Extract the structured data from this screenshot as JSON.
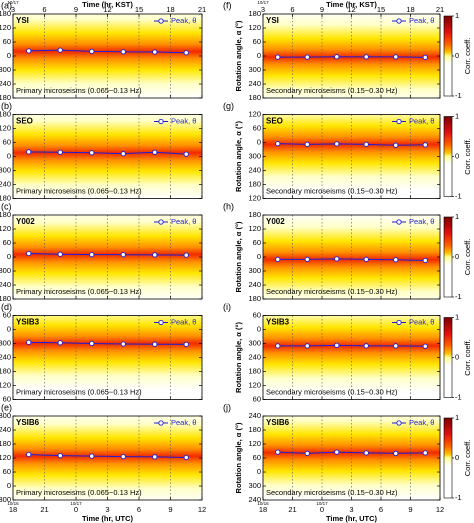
{
  "chart_data": [
    {
      "type": "line",
      "panel": "(a)",
      "station": "YSI",
      "band": "Primary microseisms (0.065−0.13 Hz)",
      "x": [
        19.5,
        22.5,
        25.5,
        28.5,
        31.5,
        34.5
      ],
      "xlim": [
        18,
        36
      ],
      "xticks": [
        18,
        21,
        24,
        27,
        30,
        33,
        36
      ],
      "x2label": "Time (hr, KST)",
      "x2date": "10/17",
      "x2lim": [
        27,
        45
      ],
      "x2ticks": [
        {
          "value": 27,
          "label": "3"
        },
        {
          "value": 30,
          "label": "6"
        },
        {
          "value": 33,
          "label": "9"
        },
        {
          "value": 36,
          "label": "12"
        },
        {
          "value": 39,
          "label": "15"
        },
        {
          "value": 42,
          "label": "18"
        },
        {
          "value": 45,
          "label": "21"
        }
      ],
      "ylim": [
        -180,
        180
      ],
      "yticks": [
        180,
        120,
        60,
        0,
        {
          "value": -60,
          "label": "300"
        },
        {
          "value": -120,
          "label": "240"
        },
        {
          "value": -180,
          "label": "180"
        }
      ],
      "series": [
        {
          "name": "Peak, θ",
          "color": "#1f1fd0",
          "values": [
            22,
            25,
            20,
            18,
            17,
            14
          ]
        }
      ]
    },
    {
      "type": "line",
      "panel": "(b)",
      "station": "SEO",
      "band": "Primary microseisms (0.065−0.13 Hz)",
      "x": [
        19.5,
        22.5,
        25.5,
        28.5,
        31.5,
        34.5
      ],
      "xlim": [
        18,
        36
      ],
      "xticks": [
        18,
        21,
        24,
        27,
        30,
        33,
        36
      ],
      "ylim": [
        -180,
        180
      ],
      "yticks": [
        180,
        120,
        60,
        0,
        {
          "value": -60,
          "label": "300"
        },
        {
          "value": -120,
          "label": "240"
        },
        {
          "value": -180,
          "label": "180"
        }
      ],
      "series": [
        {
          "name": "Peak, θ",
          "color": "#1f1fd0",
          "values": [
            20,
            18,
            16,
            12,
            18,
            10
          ]
        }
      ]
    },
    {
      "type": "line",
      "panel": "(c)",
      "station": "Y002",
      "band": "Primary microseisms (0.065−0.13 Hz)",
      "x": [
        19.5,
        22.5,
        25.5,
        28.5,
        31.5,
        34.5
      ],
      "xlim": [
        18,
        36
      ],
      "xticks": [
        18,
        21,
        24,
        27,
        30,
        33,
        36
      ],
      "ylim": [
        -180,
        180
      ],
      "yticks": [
        180,
        120,
        60,
        0,
        {
          "value": -60,
          "label": "300"
        },
        {
          "value": -120,
          "label": "240"
        },
        {
          "value": -180,
          "label": "180"
        }
      ],
      "series": [
        {
          "name": "Peak, θ",
          "color": "#1f1fd0",
          "values": [
            15,
            12,
            10,
            10,
            9,
            8
          ]
        }
      ]
    },
    {
      "type": "line",
      "panel": "(d)",
      "station": "YSIB3",
      "band": "Primary microseisms (0.065−0.13 Hz)",
      "x": [
        19.5,
        22.5,
        25.5,
        28.5,
        31.5,
        34.5
      ],
      "xlim": [
        18,
        36
      ],
      "xticks": [
        18,
        21,
        24,
        27,
        30,
        33,
        36
      ],
      "ylim": [
        -300,
        60
      ],
      "yticks": [
        60,
        0,
        {
          "value": -60,
          "label": "300"
        },
        {
          "value": -120,
          "label": "240"
        },
        {
          "value": -180,
          "label": "180"
        },
        {
          "value": -240,
          "label": "120"
        },
        {
          "value": -300,
          "label": "60"
        }
      ],
      "series": [
        {
          "name": "Peak, θ",
          "color": "#1f1fd0",
          "values": [
            -55,
            -57,
            -60,
            -62,
            -63,
            -64
          ]
        }
      ]
    },
    {
      "type": "line",
      "panel": "(e)",
      "station": "YSIB6",
      "band": "Primary microseisms (0.065−0.13 Hz)",
      "x": [
        19.5,
        22.5,
        25.5,
        28.5,
        31.5,
        34.5
      ],
      "xlim": [
        18,
        36
      ],
      "xticks": [
        {
          "value": 18,
          "label": "18"
        },
        {
          "value": 21,
          "label": "21"
        },
        {
          "value": 24,
          "label": "0"
        },
        {
          "value": 27,
          "label": "3"
        },
        {
          "value": 30,
          "label": "6"
        },
        {
          "value": 33,
          "label": "9"
        },
        {
          "value": 36,
          "label": "12"
        }
      ],
      "xlabel": "Time (hr, UTC)",
      "xdates": [
        {
          "value": 18,
          "label": "10/16"
        },
        {
          "value": 24,
          "label": "10/17"
        }
      ],
      "ylim": [
        -60,
        300
      ],
      "yticks": [
        300,
        240,
        180,
        120,
        60,
        0,
        {
          "value": -60,
          "label": "300"
        }
      ],
      "series": [
        {
          "name": "Peak, θ",
          "color": "#1f1fd0",
          "values": [
            135,
            130,
            128,
            126,
            125,
            122
          ]
        }
      ]
    },
    {
      "type": "line",
      "panel": "(f)",
      "station": "YSI",
      "band": "Secondary microseisms (0.15−0.30 Hz)",
      "ylabel": "Rotation angle, α (°)",
      "x": [
        19.5,
        22.5,
        25.5,
        28.5,
        31.5,
        34.5
      ],
      "xlim": [
        18,
        36
      ],
      "xticks": [
        18,
        21,
        24,
        27,
        30,
        33,
        36
      ],
      "x2label": "Time (hr, KST)",
      "x2date": "10/17",
      "x2lim": [
        27,
        45
      ],
      "x2ticks": [
        {
          "value": 27,
          "label": "3"
        },
        {
          "value": 30,
          "label": "6"
        },
        {
          "value": 33,
          "label": "9"
        },
        {
          "value": 36,
          "label": "12"
        },
        {
          "value": 39,
          "label": "15"
        },
        {
          "value": 42,
          "label": "18"
        },
        {
          "value": 45,
          "label": "21"
        }
      ],
      "ylim": [
        -180,
        180
      ],
      "yticks": [
        180,
        120,
        60,
        0,
        {
          "value": -60,
          "label": "300"
        },
        {
          "value": -120,
          "label": "240"
        },
        {
          "value": -180,
          "label": "180"
        }
      ],
      "colorbar": {
        "label": "Corr. coeff.",
        "lim": [
          -1,
          1
        ],
        "ticks": [
          1,
          0,
          -1
        ]
      },
      "series": [
        {
          "name": "Peak, θ",
          "color": "#1f1fd0",
          "values": [
            -5,
            -5,
            -3,
            -4,
            -4,
            -6
          ]
        }
      ]
    },
    {
      "type": "line",
      "panel": "(g)",
      "station": "SEO",
      "band": "Secondary microseisms (0.15−0.30 Hz)",
      "ylabel": "Rotation angle, α (°)",
      "x": [
        19.5,
        22.5,
        25.5,
        28.5,
        31.5,
        34.5
      ],
      "xlim": [
        18,
        36
      ],
      "xticks": [
        18,
        21,
        24,
        27,
        30,
        33,
        36
      ],
      "ylim": [
        -240,
        120
      ],
      "yticks": [
        120,
        60,
        0,
        {
          "value": -60,
          "label": "300"
        },
        {
          "value": -120,
          "label": "240"
        },
        {
          "value": -180,
          "label": "180"
        },
        {
          "value": -240,
          "label": "120"
        }
      ],
      "colorbar": {
        "label": "Corr. coeff.",
        "lim": [
          -1,
          1
        ],
        "ticks": [
          1,
          0,
          -1
        ]
      },
      "series": [
        {
          "name": "Peak, θ",
          "color": "#1f1fd0",
          "values": [
            -5,
            -8,
            -6,
            -8,
            -12,
            -10
          ]
        }
      ]
    },
    {
      "type": "line",
      "panel": "(h)",
      "station": "Y002",
      "band": "Secondary microseisms (0.15−0.30 Hz)",
      "ylabel": "Rotation angle, α (°)",
      "x": [
        19.5,
        22.5,
        25.5,
        28.5,
        31.5,
        34.5
      ],
      "xlim": [
        18,
        36
      ],
      "xticks": [
        18,
        21,
        24,
        27,
        30,
        33,
        36
      ],
      "ylim": [
        -180,
        180
      ],
      "yticks": [
        180,
        120,
        60,
        0,
        {
          "value": -60,
          "label": "300"
        },
        {
          "value": -120,
          "label": "240"
        },
        {
          "value": -180,
          "label": "180"
        }
      ],
      "colorbar": {
        "label": "Corr. coeff.",
        "lim": [
          -1,
          1
        ],
        "ticks": [
          1,
          0,
          -1
        ]
      },
      "series": [
        {
          "name": "Peak, θ",
          "color": "#1f1fd0",
          "values": [
            -10,
            -10,
            -8,
            -10,
            -12,
            -15
          ]
        }
      ]
    },
    {
      "type": "line",
      "panel": "(i)",
      "station": "YSIB3",
      "band": "Secondary microseisms (0.15−0.30 Hz)",
      "ylabel": "Rotation angle, α (°)",
      "x": [
        19.5,
        22.5,
        25.5,
        28.5,
        31.5,
        34.5
      ],
      "xlim": [
        18,
        36
      ],
      "xticks": [
        18,
        21,
        24,
        27,
        30,
        33,
        36
      ],
      "ylim": [
        -300,
        60
      ],
      "yticks": [
        60,
        0,
        {
          "value": -60,
          "label": "300"
        },
        {
          "value": -120,
          "label": "240"
        },
        {
          "value": -180,
          "label": "180"
        },
        {
          "value": -240,
          "label": "120"
        },
        {
          "value": -300,
          "label": "60"
        }
      ],
      "colorbar": {
        "label": "Corr. coeff.",
        "lim": [
          -1,
          1
        ],
        "ticks": [
          1,
          0,
          -1
        ]
      },
      "series": [
        {
          "name": "Peak, θ",
          "color": "#1f1fd0",
          "values": [
            -70,
            -70,
            -68,
            -70,
            -70,
            -72
          ]
        }
      ]
    },
    {
      "type": "line",
      "panel": "(j)",
      "station": "YSIB6",
      "band": "Secondary microseisms (0.15−0.30 Hz)",
      "ylabel": "Rotation angle, α (°)",
      "x": [
        19.5,
        22.5,
        25.5,
        28.5,
        31.5,
        34.5
      ],
      "xlim": [
        18,
        36
      ],
      "xticks": [
        {
          "value": 18,
          "label": "18"
        },
        {
          "value": 21,
          "label": "21"
        },
        {
          "value": 24,
          "label": "0"
        },
        {
          "value": 27,
          "label": "3"
        },
        {
          "value": 30,
          "label": "6"
        },
        {
          "value": 33,
          "label": "9"
        },
        {
          "value": 36,
          "label": "12"
        }
      ],
      "xlabel": "Time (hr, UTC)",
      "xdates": [
        {
          "value": 18,
          "label": "10/16"
        },
        {
          "value": 24,
          "label": "10/17"
        }
      ],
      "ylim": [
        -120,
        240
      ],
      "yticks": [
        240,
        180,
        120,
        60,
        0,
        {
          "value": -60,
          "label": "300"
        },
        {
          "value": -120,
          "label": "240"
        }
      ],
      "colorbar": {
        "label": "Corr. coeff.",
        "lim": [
          -1,
          1
        ],
        "ticks": [
          1,
          0,
          -1
        ]
      },
      "series": [
        {
          "name": "Peak, θ",
          "color": "#1f1fd0",
          "values": [
            85,
            80,
            85,
            82,
            80,
            82
          ]
        }
      ]
    }
  ]
}
